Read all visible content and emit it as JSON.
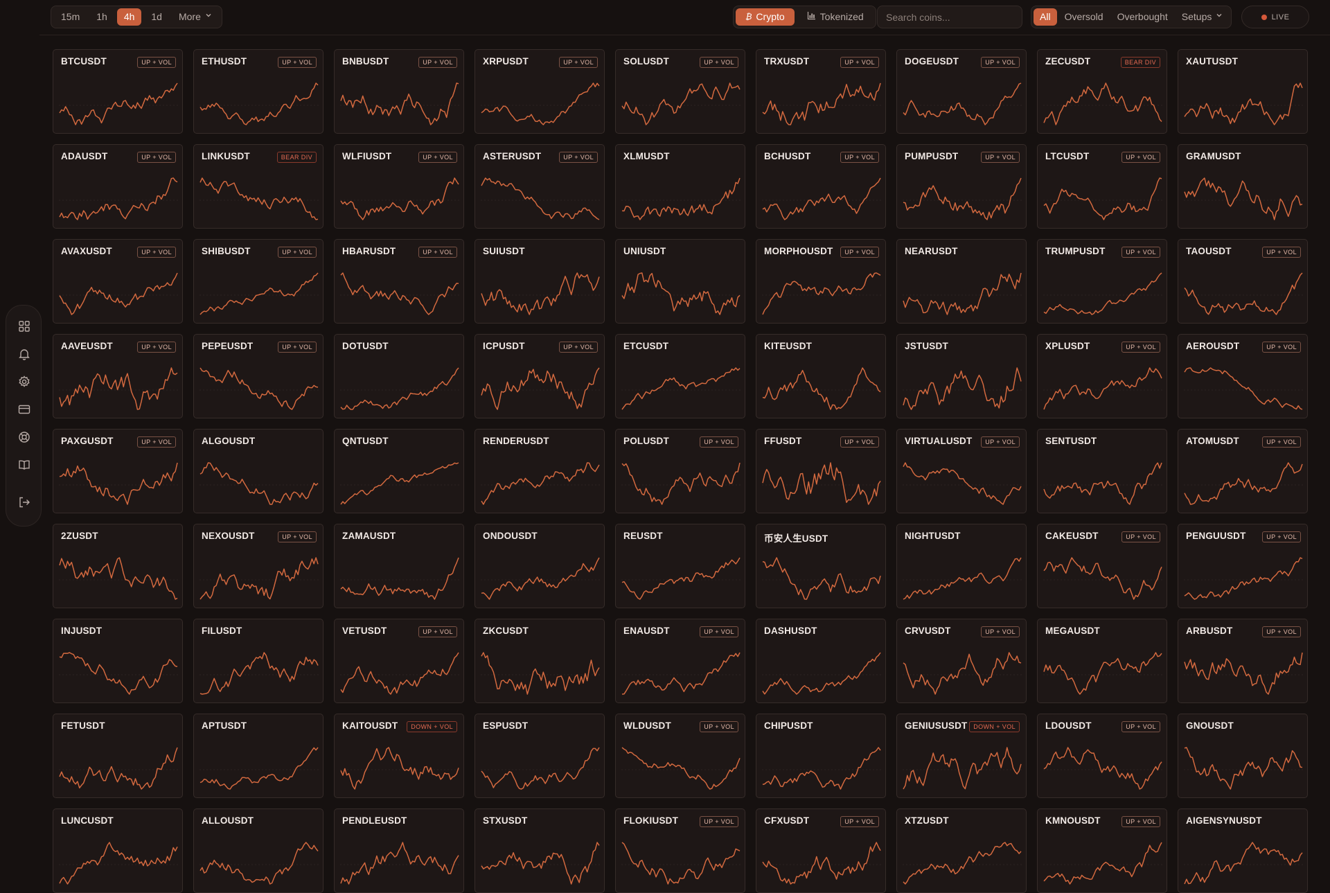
{
  "timeframes": {
    "options": [
      "15m",
      "1h",
      "4h",
      "1d"
    ],
    "active": "4h",
    "more_label": "More"
  },
  "source_tabs": {
    "crypto": "Crypto",
    "tokenized": "Tokenized",
    "active": "Crypto"
  },
  "search": {
    "placeholder": "Search coins..."
  },
  "filters": {
    "options": [
      "All",
      "Oversold",
      "Overbought"
    ],
    "active": "All",
    "setups_label": "Setups"
  },
  "live_label": "LIVE",
  "colors": {
    "accent": "#c9603d",
    "line": "#d3693f",
    "background": "#161110",
    "card": "#1e1716",
    "tag_down": "#e46a52"
  },
  "sidebar_icons": [
    "grid-icon",
    "bell-icon",
    "gear-icon",
    "card-icon",
    "lifebuoy-icon",
    "book-icon",
    "logout-icon"
  ],
  "coins": [
    {
      "symbol": "BTCUSDT",
      "tag": "UP + VOL"
    },
    {
      "symbol": "ETHUSDT",
      "tag": "UP + VOL"
    },
    {
      "symbol": "BNBUSDT",
      "tag": "UP + VOL"
    },
    {
      "symbol": "XRPUSDT",
      "tag": "UP + VOL"
    },
    {
      "symbol": "SOLUSDT",
      "tag": "UP + VOL"
    },
    {
      "symbol": "TRXUSDT",
      "tag": "UP + VOL"
    },
    {
      "symbol": "DOGEUSDT",
      "tag": "UP + VOL"
    },
    {
      "symbol": "ZECUSDT",
      "tag": "BEAR DIV"
    },
    {
      "symbol": "XAUTUSDT",
      "tag": ""
    },
    {
      "symbol": "ADAUSDT",
      "tag": "UP + VOL"
    },
    {
      "symbol": "LINKUSDT",
      "tag": "BEAR DIV"
    },
    {
      "symbol": "WLFIUSDT",
      "tag": "UP + VOL"
    },
    {
      "symbol": "ASTERUSDT",
      "tag": "UP + VOL"
    },
    {
      "symbol": "XLMUSDT",
      "tag": ""
    },
    {
      "symbol": "BCHUSDT",
      "tag": "UP + VOL"
    },
    {
      "symbol": "PUMPUSDT",
      "tag": "UP + VOL"
    },
    {
      "symbol": "LTCUSDT",
      "tag": "UP + VOL"
    },
    {
      "symbol": "GRAMUSDT",
      "tag": ""
    },
    {
      "symbol": "AVAXUSDT",
      "tag": "UP + VOL"
    },
    {
      "symbol": "SHIBUSDT",
      "tag": "UP + VOL"
    },
    {
      "symbol": "HBARUSDT",
      "tag": "UP + VOL"
    },
    {
      "symbol": "SUIUSDT",
      "tag": ""
    },
    {
      "symbol": "UNIUSDT",
      "tag": ""
    },
    {
      "symbol": "MORPHOUSDT",
      "tag": "UP + VOL"
    },
    {
      "symbol": "NEARUSDT",
      "tag": ""
    },
    {
      "symbol": "TRUMPUSDT",
      "tag": "UP + VOL"
    },
    {
      "symbol": "TAOUSDT",
      "tag": "UP + VOL"
    },
    {
      "symbol": "AAVEUSDT",
      "tag": "UP + VOL"
    },
    {
      "symbol": "PEPEUSDT",
      "tag": "UP + VOL"
    },
    {
      "symbol": "DOTUSDT",
      "tag": ""
    },
    {
      "symbol": "ICPUSDT",
      "tag": "UP + VOL"
    },
    {
      "symbol": "ETCUSDT",
      "tag": ""
    },
    {
      "symbol": "KITEUSDT",
      "tag": ""
    },
    {
      "symbol": "JSTUSDT",
      "tag": ""
    },
    {
      "symbol": "XPLUSDT",
      "tag": "UP + VOL"
    },
    {
      "symbol": "AEROUSDT",
      "tag": "UP + VOL"
    },
    {
      "symbol": "PAXGUSDT",
      "tag": "UP + VOL"
    },
    {
      "symbol": "ALGOUSDT",
      "tag": ""
    },
    {
      "symbol": "QNTUSDT",
      "tag": ""
    },
    {
      "symbol": "RENDERUSDT",
      "tag": ""
    },
    {
      "symbol": "POLUSDT",
      "tag": "UP + VOL"
    },
    {
      "symbol": "FFUSDT",
      "tag": "UP + VOL"
    },
    {
      "symbol": "VIRTUALUSDT",
      "tag": "UP + VOL"
    },
    {
      "symbol": "SENTUSDT",
      "tag": ""
    },
    {
      "symbol": "ATOMUSDT",
      "tag": "UP + VOL"
    },
    {
      "symbol": "2ZUSDT",
      "tag": ""
    },
    {
      "symbol": "NEXOUSDT",
      "tag": "UP + VOL"
    },
    {
      "symbol": "ZAMAUSDT",
      "tag": ""
    },
    {
      "symbol": "ONDOUSDT",
      "tag": ""
    },
    {
      "symbol": "REUSDT",
      "tag": ""
    },
    {
      "symbol": "币安人生USDT",
      "tag": ""
    },
    {
      "symbol": "NIGHTUSDT",
      "tag": ""
    },
    {
      "symbol": "CAKEUSDT",
      "tag": "UP + VOL"
    },
    {
      "symbol": "PENGUUSDT",
      "tag": "UP + VOL"
    },
    {
      "symbol": "INJUSDT",
      "tag": ""
    },
    {
      "symbol": "FILUSDT",
      "tag": ""
    },
    {
      "symbol": "VETUSDT",
      "tag": "UP + VOL"
    },
    {
      "symbol": "ZKCUSDT",
      "tag": ""
    },
    {
      "symbol": "ENAUSDT",
      "tag": "UP + VOL"
    },
    {
      "symbol": "DASHUSDT",
      "tag": ""
    },
    {
      "symbol": "CRVUSDT",
      "tag": "UP + VOL"
    },
    {
      "symbol": "MEGAUSDT",
      "tag": ""
    },
    {
      "symbol": "ARBUSDT",
      "tag": "UP + VOL"
    },
    {
      "symbol": "FETUSDT",
      "tag": ""
    },
    {
      "symbol": "APTUSDT",
      "tag": ""
    },
    {
      "symbol": "KAITOUSDT",
      "tag": "DOWN + VOL"
    },
    {
      "symbol": "ESPUSDT",
      "tag": ""
    },
    {
      "symbol": "WLDUSDT",
      "tag": "UP + VOL"
    },
    {
      "symbol": "CHIPUSDT",
      "tag": ""
    },
    {
      "symbol": "GENIUSUSDT",
      "tag": "DOWN + VOL"
    },
    {
      "symbol": "LDOUSDT",
      "tag": "UP + VOL"
    },
    {
      "symbol": "GNOUSDT",
      "tag": ""
    },
    {
      "symbol": "LUNCUSDT",
      "tag": ""
    },
    {
      "symbol": "ALLOUSDT",
      "tag": ""
    },
    {
      "symbol": "PENDLEUSDT",
      "tag": ""
    },
    {
      "symbol": "STXUSDT",
      "tag": ""
    },
    {
      "symbol": "FLOKIUSDT",
      "tag": "UP + VOL"
    },
    {
      "symbol": "CFXUSDT",
      "tag": "UP + VOL"
    },
    {
      "symbol": "XTZUSDT",
      "tag": ""
    },
    {
      "symbol": "KMNOUSDT",
      "tag": "UP + VOL"
    },
    {
      "symbol": "AIGENSYNUSDT",
      "tag": ""
    }
  ]
}
